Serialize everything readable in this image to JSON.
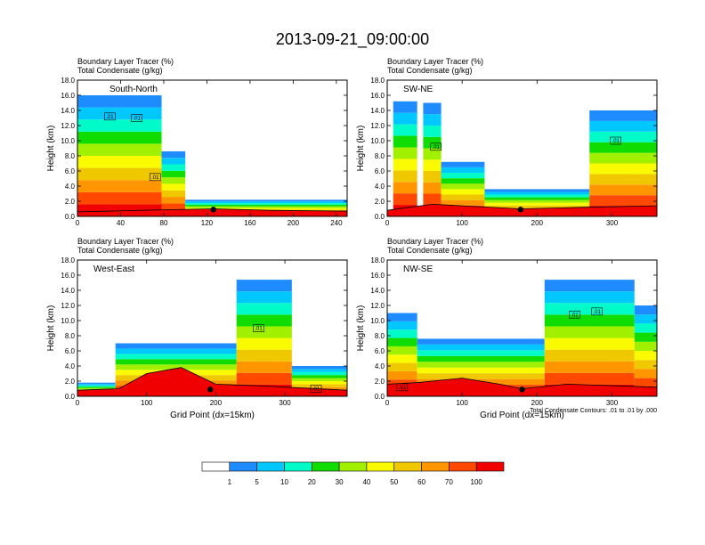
{
  "figure": {
    "title": "2013-09-21_09:00:00",
    "condensate_note": "Total Condensate Contours: .01 to .01 by .000"
  },
  "colorbar": {
    "labels": [
      "1",
      "5",
      "10",
      "20",
      "30",
      "40",
      "50",
      "60",
      "70",
      "100"
    ],
    "colors": [
      "#ffffff",
      "#1e8cff",
      "#00c8ff",
      "#00fac8",
      "#10dc00",
      "#a0f000",
      "#fafa00",
      "#f0c800",
      "#ff9600",
      "#ff4800",
      "#f00000"
    ]
  },
  "chart_data": [
    {
      "type": "heatmap",
      "panel": "top-left",
      "title": "South-North",
      "subtitle_1": "Boundary Layer Tracer   (%)",
      "subtitle_2": "Total Condensate   (g/kg)",
      "ylabel": "Height (km)",
      "xlabel": "",
      "xlim": [
        0,
        250
      ],
      "xticks": [
        0,
        40,
        80,
        120,
        160,
        200,
        240
      ],
      "ylim": [
        0,
        18
      ],
      "yticks": [
        "0.0",
        "2.0",
        "4.0",
        "6.0",
        "8.0",
        "10.0",
        "12.0",
        "14.0",
        "16.0",
        "18.0"
      ],
      "contour_labels": [
        {
          "text": ".01",
          "x": 30,
          "y": 13.2
        },
        {
          "text": ".01",
          "x": 55,
          "y": 13.0
        },
        {
          "text": ".01",
          "x": 72,
          "y": 5.2
        }
      ],
      "site_marker_x": 126,
      "plumes": [
        {
          "xmin": 0,
          "xmax": 78,
          "top": 16.0
        },
        {
          "xmin": 78,
          "xmax": 100,
          "top": 8.6
        },
        {
          "xmin": 100,
          "xmax": 250,
          "top": 2.2
        }
      ],
      "terrain": [
        [
          0,
          0.6
        ],
        [
          60,
          0.8
        ],
        [
          90,
          0.9
        ],
        [
          126,
          1.0
        ],
        [
          180,
          0.8
        ],
        [
          250,
          0.7
        ]
      ]
    },
    {
      "type": "heatmap",
      "panel": "top-right",
      "title": "SW-NE",
      "subtitle_1": "Boundary Layer Tracer   (%)",
      "subtitle_2": "Total Condensate   (g/kg)",
      "ylabel": "Height (km)",
      "xlabel": "",
      "xlim": [
        0,
        360
      ],
      "xticks": [
        0,
        100,
        200,
        300
      ],
      "ylim": [
        0,
        18
      ],
      "yticks": [
        "0.0",
        "2.0",
        "4.0",
        "6.0",
        "8.0",
        "10.0",
        "12.0",
        "14.0",
        "16.0",
        "18.0"
      ],
      "contour_labels": [
        {
          "text": ".01",
          "x": 65,
          "y": 9.2
        },
        {
          "text": ".01",
          "x": 305,
          "y": 10.0
        }
      ],
      "site_marker_x": 178,
      "plumes": [
        {
          "xmin": 8,
          "xmax": 40,
          "top": 15.2
        },
        {
          "xmin": 48,
          "xmax": 72,
          "top": 15.0
        },
        {
          "xmin": 72,
          "xmax": 130,
          "top": 7.2
        },
        {
          "xmin": 130,
          "xmax": 270,
          "top": 3.6
        },
        {
          "xmin": 270,
          "xmax": 360,
          "top": 14.0
        }
      ],
      "terrain": [
        [
          0,
          0.8
        ],
        [
          60,
          1.6
        ],
        [
          100,
          1.4
        ],
        [
          178,
          1.0
        ],
        [
          260,
          1.2
        ],
        [
          360,
          1.4
        ]
      ]
    },
    {
      "type": "heatmap",
      "panel": "bottom-left",
      "title": "West-East",
      "subtitle_1": "Boundary Layer Tracer   (%)",
      "subtitle_2": "Total Condensate   (g/kg)",
      "ylabel": "Height (km)",
      "xlabel": "Grid Point (dx=15km)",
      "xlim": [
        0,
        390
      ],
      "xticks": [
        0,
        100,
        200,
        300
      ],
      "ylim": [
        0,
        18
      ],
      "yticks": [
        "0.0",
        "2.0",
        "4.0",
        "6.0",
        "8.0",
        "10.0",
        "12.0",
        "14.0",
        "16.0",
        "18.0"
      ],
      "contour_labels": [
        {
          "text": ".01",
          "x": 262,
          "y": 9.0
        },
        {
          "text": ".01",
          "x": 345,
          "y": 1.0
        }
      ],
      "site_marker_x": 192,
      "plumes": [
        {
          "xmin": 0,
          "xmax": 55,
          "top": 1.8
        },
        {
          "xmin": 55,
          "xmax": 230,
          "top": 7.0
        },
        {
          "xmin": 230,
          "xmax": 310,
          "top": 15.4
        },
        {
          "xmin": 310,
          "xmax": 390,
          "top": 4.0
        }
      ],
      "terrain": [
        [
          0,
          0.8
        ],
        [
          60,
          1.0
        ],
        [
          100,
          3.0
        ],
        [
          150,
          3.8
        ],
        [
          200,
          1.6
        ],
        [
          260,
          1.4
        ],
        [
          390,
          0.8
        ]
      ]
    },
    {
      "type": "heatmap",
      "panel": "bottom-right",
      "title": "NW-SE",
      "subtitle_1": "Boundary Layer Tracer   (%)",
      "subtitle_2": "Total Condensate   (g/kg)",
      "ylabel": "Height (km)",
      "xlabel": "Grid Point (dx=15km)",
      "xlim": [
        0,
        360
      ],
      "xticks": [
        0,
        100,
        200,
        300
      ],
      "ylim": [
        0,
        18
      ],
      "yticks": [
        "0.0",
        "2.0",
        "4.0",
        "6.0",
        "8.0",
        "10.0",
        "12.0",
        "14.0",
        "16.0",
        "18.0"
      ],
      "contour_labels": [
        {
          "text": ".01",
          "x": 20,
          "y": 1.2
        },
        {
          "text": ".01",
          "x": 250,
          "y": 10.8
        },
        {
          "text": ".01",
          "x": 280,
          "y": 11.2
        }
      ],
      "site_marker_x": 180,
      "plumes": [
        {
          "xmin": 0,
          "xmax": 40,
          "top": 11.0
        },
        {
          "xmin": 40,
          "xmax": 210,
          "top": 7.6
        },
        {
          "xmin": 210,
          "xmax": 330,
          "top": 15.4
        },
        {
          "xmin": 330,
          "xmax": 360,
          "top": 12.0
        }
      ],
      "terrain": [
        [
          0,
          1.6
        ],
        [
          40,
          1.8
        ],
        [
          100,
          2.4
        ],
        [
          150,
          1.6
        ],
        [
          180,
          1.0
        ],
        [
          240,
          1.6
        ],
        [
          360,
          1.2
        ]
      ]
    }
  ]
}
